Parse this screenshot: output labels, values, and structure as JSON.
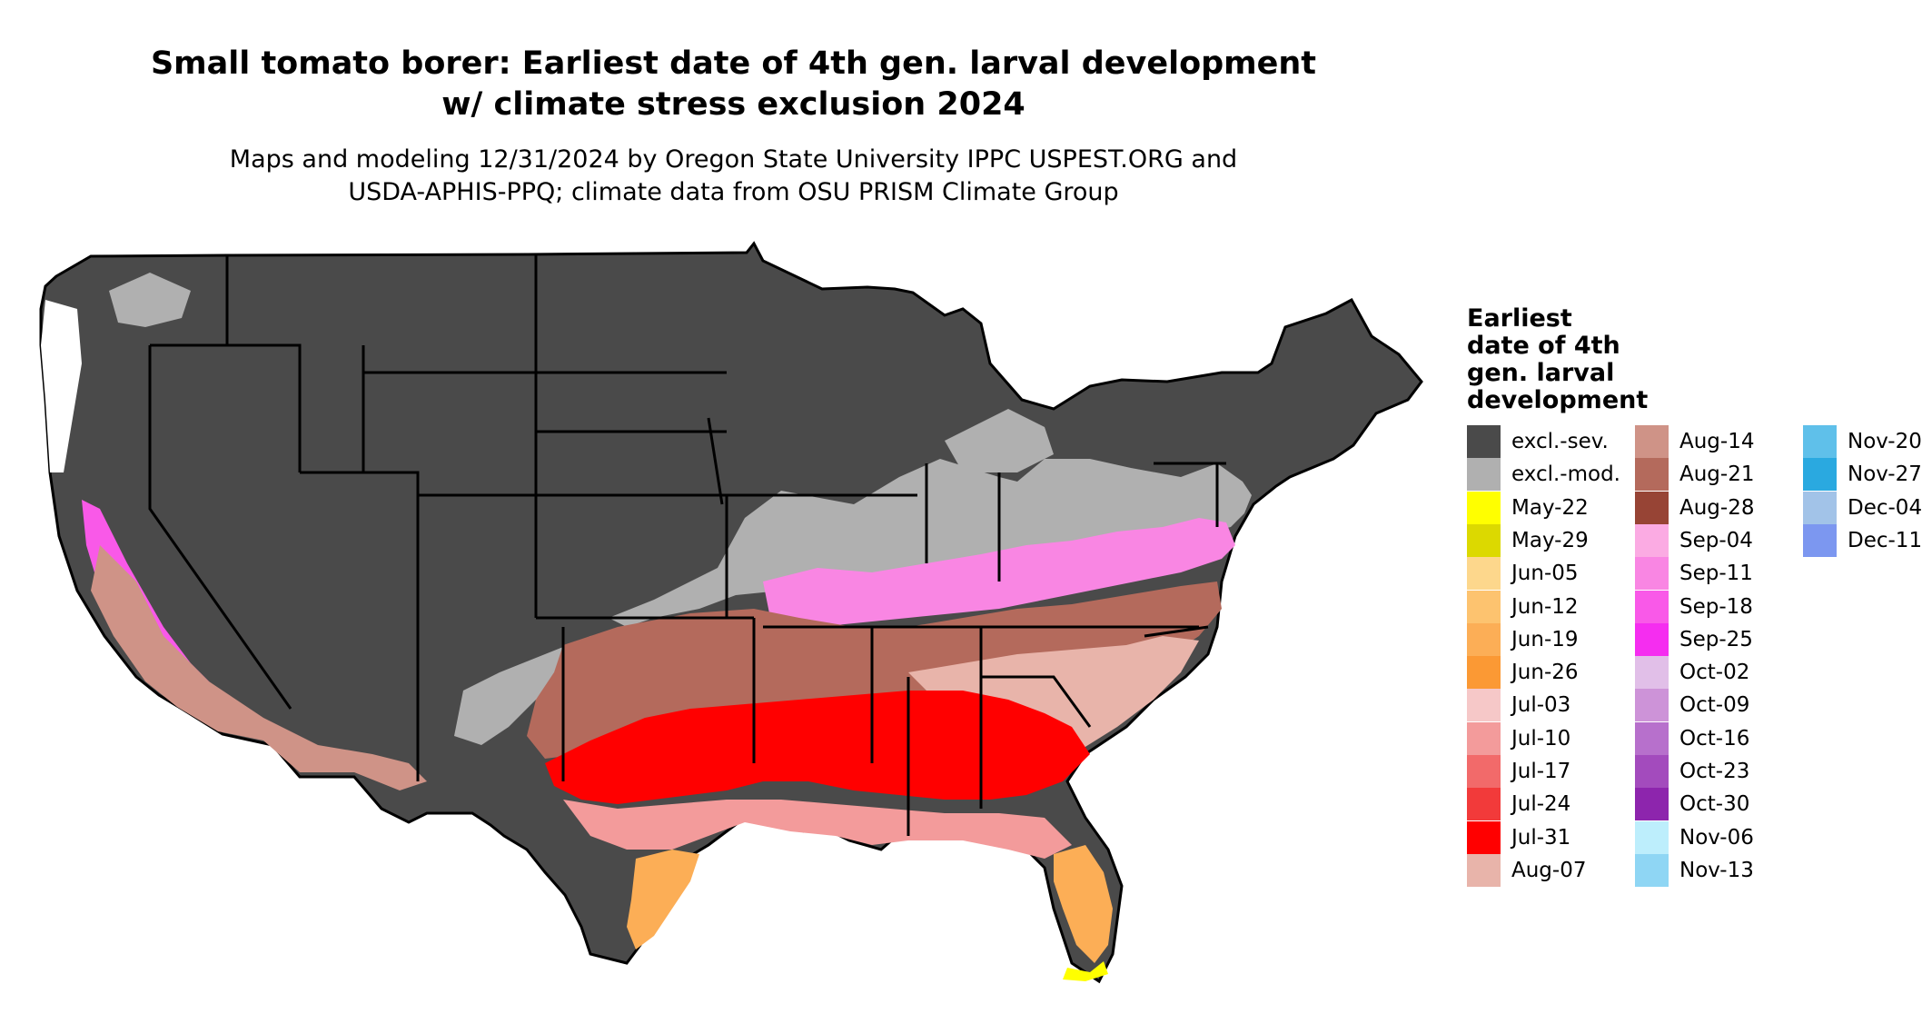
{
  "title_line1": "Small tomato borer: Earliest date of 4th gen. larval development",
  "title_line2": "w/ climate stress exclusion 2024",
  "subtitle_line1": "Maps and modeling 12/31/2024 by Oregon State University IPPC USPEST.ORG and",
  "subtitle_line2": "USDA-APHIS-PPQ; climate data from OSU PRISM Climate Group",
  "legend": {
    "title_lines": [
      "Earliest",
      "date of 4th",
      "gen. larval",
      "development"
    ],
    "items": [
      {
        "label": "excl.-sev.",
        "color": "#4a4a4a"
      },
      {
        "label": "excl.-mod.",
        "color": "#b0b0b0"
      },
      {
        "label": "May-22",
        "color": "#ffff00"
      },
      {
        "label": "May-29",
        "color": "#dcd900"
      },
      {
        "label": "Jun-05",
        "color": "#fdd78c"
      },
      {
        "label": "Jun-12",
        "color": "#fdc36f"
      },
      {
        "label": "Jun-19",
        "color": "#fcae56"
      },
      {
        "label": "Jun-26",
        "color": "#fb9934"
      },
      {
        "label": "Jul-03",
        "color": "#f6c8c8"
      },
      {
        "label": "Jul-10",
        "color": "#f39b9b"
      },
      {
        "label": "Jul-17",
        "color": "#f26a6a"
      },
      {
        "label": "Jul-24",
        "color": "#f23a3a"
      },
      {
        "label": "Jul-31",
        "color": "#ff0000"
      },
      {
        "label": "Aug-07",
        "color": "#e8b4aa"
      },
      {
        "label": "Aug-14",
        "color": "#cf9387"
      },
      {
        "label": "Aug-21",
        "color": "#b46a5c"
      },
      {
        "label": "Aug-28",
        "color": "#974435"
      },
      {
        "label": "Sep-04",
        "color": "#fbabe3"
      },
      {
        "label": "Sep-11",
        "color": "#f986e3"
      },
      {
        "label": "Sep-18",
        "color": "#f959e8"
      },
      {
        "label": "Sep-25",
        "color": "#f52df0"
      },
      {
        "label": "Oct-02",
        "color": "#e1bfe8"
      },
      {
        "label": "Oct-09",
        "color": "#cd93d8"
      },
      {
        "label": "Oct-16",
        "color": "#b770cc"
      },
      {
        "label": "Oct-23",
        "color": "#a34bbd"
      },
      {
        "label": "Oct-30",
        "color": "#8d25ad"
      },
      {
        "label": "Nov-06",
        "color": "#bdeefc"
      },
      {
        "label": "Nov-13",
        "color": "#8fd6f4"
      },
      {
        "label": "Nov-20",
        "color": "#5fc0ea"
      },
      {
        "label": "Nov-27",
        "color": "#2aa9e0"
      },
      {
        "label": "Dec-04",
        "color": "#a2c3e8"
      },
      {
        "label": "Dec-11",
        "color": "#7c97f0"
      }
    ]
  },
  "map": {
    "region": "contiguous United States",
    "colors": {
      "severe_exclusion": "#4a4a4a",
      "moderate_exclusion": "#b0b0b0",
      "borders": "#000000"
    }
  }
}
